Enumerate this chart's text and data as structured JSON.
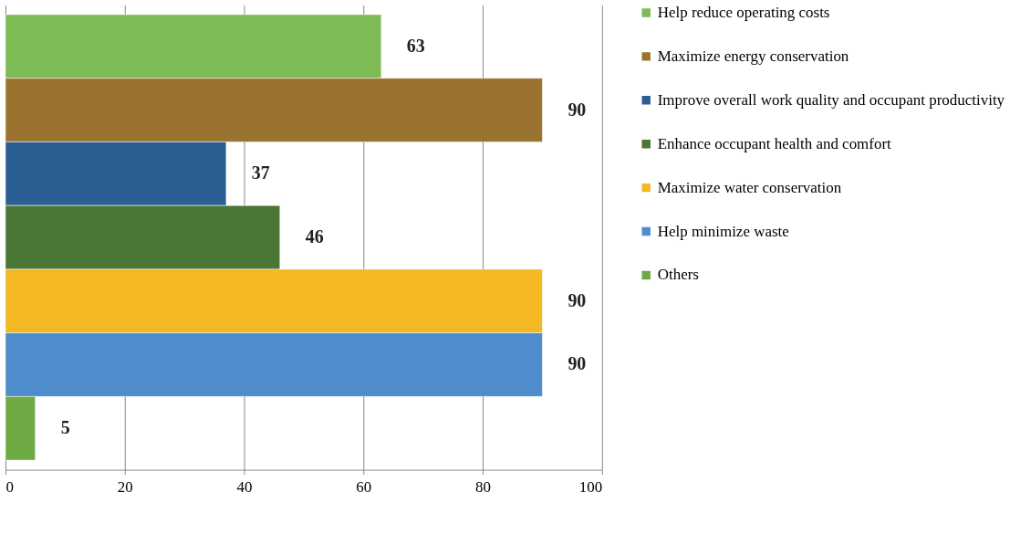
{
  "chart_data": {
    "type": "bar",
    "orientation": "horizontal",
    "categories": [
      null
    ],
    "series": [
      {
        "name": "Help reduce operating costs",
        "color": "#7dbb55",
        "values": [
          63
        ]
      },
      {
        "name": "Maximize energy conservation",
        "color": "#9a7330",
        "values": [
          90
        ]
      },
      {
        "name": "Improve overall work quality and occupant productivity",
        "color": "#2b5f94",
        "values": [
          37
        ]
      },
      {
        "name": "Enhance occupant health and comfort",
        "color": "#4a7636",
        "values": [
          46
        ]
      },
      {
        "name": "Maximize water conservation",
        "color": "#f3b824",
        "values": [
          90
        ]
      },
      {
        "name": "Help minimize waste",
        "color": "#4f8ccb",
        "values": [
          90
        ]
      },
      {
        "name": "Others",
        "color": "#6eaa44",
        "values": [
          5
        ]
      }
    ],
    "xlim": [
      0,
      100
    ],
    "xticks": [
      0,
      20,
      40,
      60,
      80,
      100
    ],
    "grid": "x",
    "legend": "right",
    "data_labels": true
  }
}
